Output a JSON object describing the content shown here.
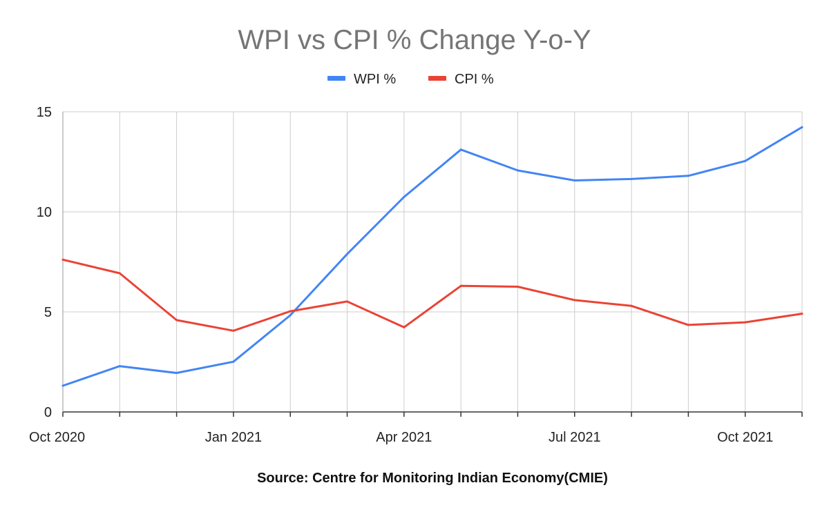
{
  "colors": {
    "wpi": "#4285f4",
    "cpi": "#ea4335",
    "grid": "#cccccc",
    "axis": "#333333",
    "title": "#757575"
  },
  "chart_data": {
    "type": "line",
    "title": "WPI vs CPI % Change Y-o-Y",
    "xlabel": "",
    "ylabel": "",
    "source": "Source: Centre for Monitoring Indian Economy(CMIE)",
    "x": [
      "Oct 2020",
      "Nov 2020",
      "Dec 2020",
      "Jan 2021",
      "Feb 2021",
      "Mar 2021",
      "Apr 2021",
      "May 2021",
      "Jun 2021",
      "Jul 2021",
      "Aug 2021",
      "Sep 2021",
      "Oct 2021",
      "Nov 2021"
    ],
    "x_tick_labels": [
      "Oct 2020",
      "Jan 2021",
      "Apr 2021",
      "Jul 2021",
      "Oct 2021"
    ],
    "y_ticks": [
      0,
      5,
      10,
      15
    ],
    "ylim": [
      0,
      15
    ],
    "grid": true,
    "legend_position": "top-center",
    "series": [
      {
        "name": "WPI %",
        "color": "#4285f4",
        "values": [
          1.31,
          2.29,
          1.95,
          2.51,
          4.83,
          7.89,
          10.74,
          13.11,
          12.07,
          11.57,
          11.64,
          11.8,
          12.54,
          14.23
        ]
      },
      {
        "name": "CPI %",
        "color": "#ea4335",
        "values": [
          7.61,
          6.93,
          4.59,
          4.06,
          5.03,
          5.52,
          4.23,
          6.3,
          6.26,
          5.59,
          5.3,
          4.35,
          4.48,
          4.91
        ]
      }
    ]
  }
}
